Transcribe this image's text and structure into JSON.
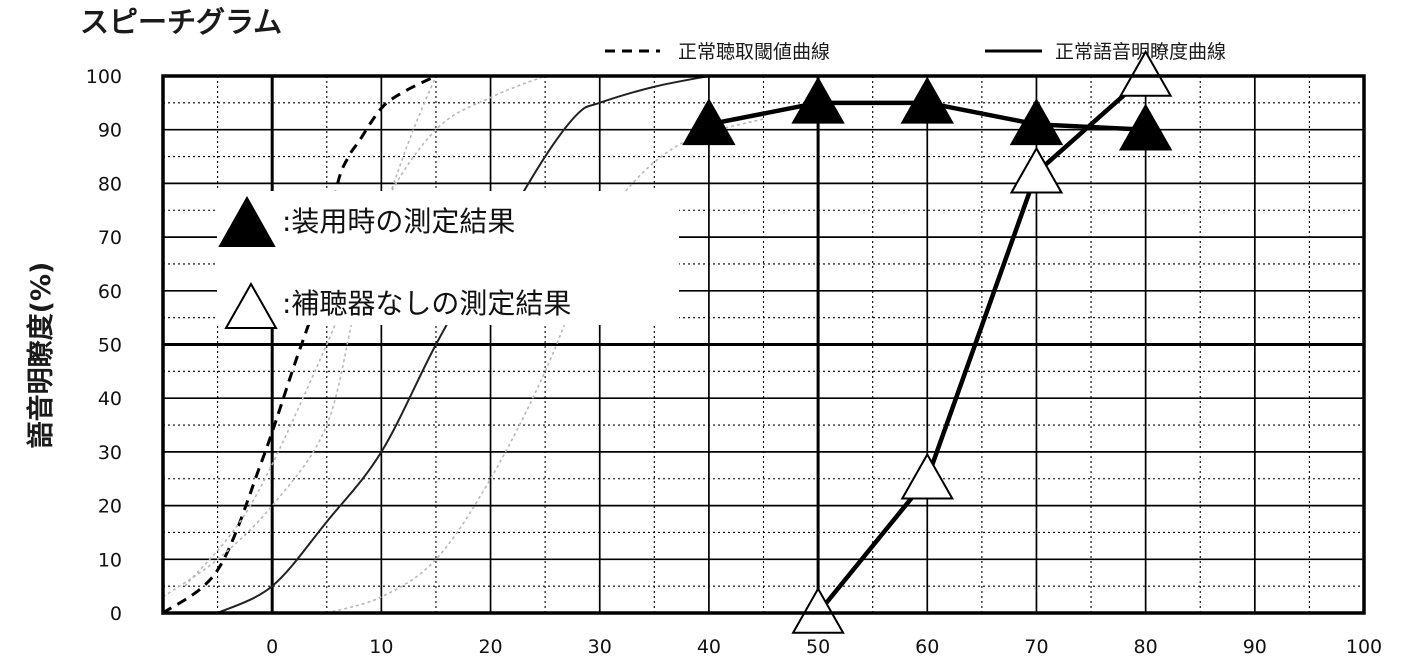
{
  "chart_data": {
    "type": "line",
    "title": "スピーチグラム",
    "ylabel": "語音明瞭度(%)",
    "xlabel": "",
    "xlim": [
      -10,
      100
    ],
    "ylim": [
      0,
      100
    ],
    "x_ticks": [
      0,
      10,
      20,
      30,
      40,
      50,
      60,
      70,
      80,
      90,
      100
    ],
    "y_ticks": [
      0,
      10,
      20,
      30,
      40,
      50,
      60,
      70,
      80,
      90,
      100
    ],
    "grid": true,
    "legend_top": [
      {
        "label": "正常聴取閾値曲線",
        "style": "dashed"
      },
      {
        "label": "正常語音明瞭度曲線",
        "style": "solid"
      }
    ],
    "marker_key": [
      {
        "symbol": "filled-triangle",
        "label": ":装用時の測定結果"
      },
      {
        "symbol": "open-triangle",
        "label": ":補聴器なしの測定結果"
      }
    ],
    "series": [
      {
        "key": "aided",
        "marker": "filled-triangle",
        "x": [
          40,
          50,
          60,
          70,
          80
        ],
        "y": [
          91,
          95,
          95,
          91,
          90
        ]
      },
      {
        "key": "unaided",
        "marker": "open-triangle",
        "x": [
          50,
          60,
          70,
          80
        ],
        "y": [
          0,
          25,
          82,
          100
        ]
      }
    ],
    "reference_curves": [
      {
        "key": "threshold",
        "style": "dashed",
        "x": [
          -10,
          -5,
          -1,
          2,
          4,
          5,
          6,
          7,
          8,
          10,
          12,
          15
        ],
        "y": [
          0,
          8,
          28,
          46,
          58,
          68,
          80,
          85,
          88,
          94,
          97,
          100
        ]
      },
      {
        "key": "normal",
        "style": "solid",
        "x": [
          -5,
          0,
          5,
          10,
          15,
          20,
          25,
          28,
          30,
          35,
          40
        ],
        "y": [
          0,
          5,
          17,
          30,
          50,
          68,
          85,
          93,
          95,
          98,
          100
        ]
      },
      {
        "key": "threshold-spread-low",
        "style": "thin-gray",
        "x": [
          -10,
          -5,
          0,
          5,
          8,
          12,
          15
        ],
        "y": [
          3,
          10,
          20,
          35,
          60,
          85,
          100
        ]
      },
      {
        "key": "threshold-spread-high",
        "style": "thin-gray",
        "x": [
          -8,
          -2,
          5,
          10,
          15,
          20,
          25
        ],
        "y": [
          5,
          20,
          50,
          75,
          90,
          96,
          100
        ]
      },
      {
        "key": "normal-spread-low",
        "style": "thin-gray",
        "x": [
          5,
          10,
          15,
          20,
          25,
          30,
          33,
          38,
          45
        ],
        "y": [
          0,
          3,
          10,
          25,
          45,
          70,
          80,
          88,
          92
        ]
      }
    ]
  },
  "colors": {
    "ink": "#000000",
    "axis_text": "#111111",
    "light_curve": "#b8b8b8",
    "key_background": "#ffffff"
  }
}
